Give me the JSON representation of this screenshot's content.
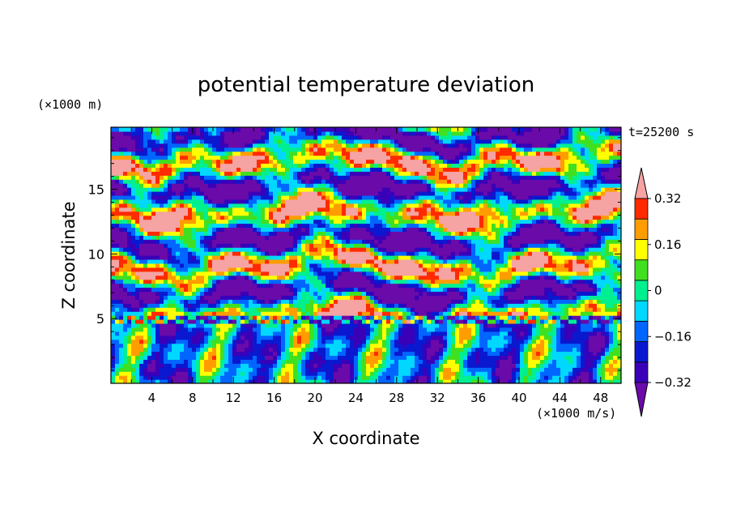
{
  "chart_data": {
    "type": "heatmap",
    "title": "potential temperature deviation",
    "xlabel": "X coordinate",
    "ylabel": "Z coordinate",
    "x_unit": "(×1000 m/s)",
    "y_unit": "(×1000 m)",
    "time_label": "t=25200 s",
    "xlim": [
      0,
      50
    ],
    "ylim": [
      0,
      19.8
    ],
    "x_ticks": [
      4,
      8,
      12,
      16,
      20,
      24,
      28,
      32,
      36,
      40,
      44,
      48
    ],
    "y_ticks": [
      5,
      10,
      15
    ],
    "colorbar": {
      "levels": [
        -0.4,
        -0.32,
        -0.24,
        -0.16,
        -0.08,
        0,
        0.08,
        0.16,
        0.24,
        0.32,
        0.4
      ],
      "tick_labels": [
        "0.32",
        "0.16",
        "0",
        "−0.16",
        "−0.32"
      ],
      "tick_values": [
        0.32,
        0.16,
        0,
        -0.16,
        -0.32
      ],
      "colors": [
        "#6a0aa8",
        "#3a00b8",
        "#0a18d0",
        "#0066ff",
        "#00d8ff",
        "#00f090",
        "#40e020",
        "#ffff00",
        "#ff9d00",
        "#ff2a00",
        "#f5a3a3"
      ],
      "extend": "both"
    },
    "bands": {
      "z_0_5": "turbulent mixed layer, mostly cyan with yellow/green/red plumes",
      "z_5_20": "alternating pink (warm) and purple (cool) layered patches"
    }
  },
  "colors": {
    "background": "#ffffff",
    "warm_max": "#f5a3a3",
    "cool_min": "#6a0aa8"
  }
}
